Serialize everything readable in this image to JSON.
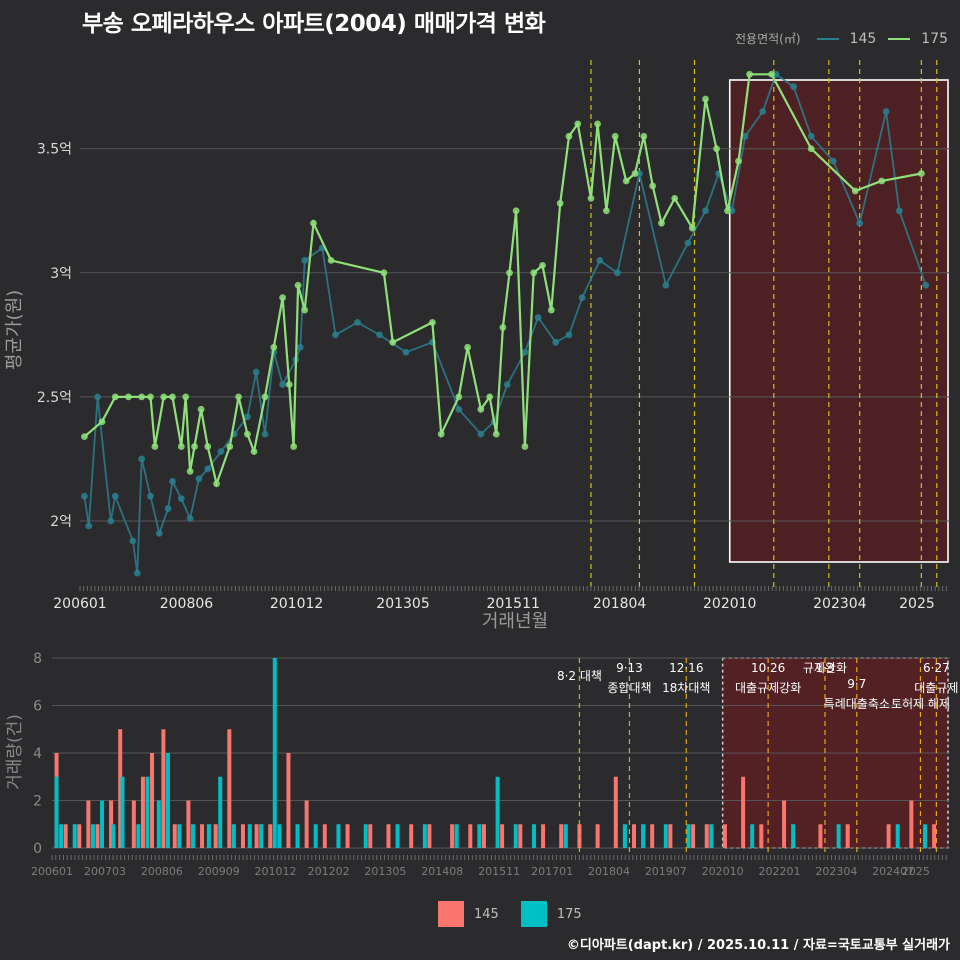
{
  "title": "부송 오페라하우스 아파트(2004) 매매가격 변화",
  "footer": "©디아파트(dapt.kr) / 2025.10.11 / 자료=국토교통부 실거래가",
  "legend": {
    "caption": "전용면적(㎡)",
    "items": [
      {
        "label": "145",
        "color": "#2a7f8f"
      },
      {
        "label": "175",
        "color": "#8fe07a"
      }
    ]
  },
  "bar_legend": [
    {
      "label": "145",
      "color": "#f8766d"
    },
    {
      "label": "175",
      "color": "#00bfc4"
    }
  ],
  "chart_data": [
    {
      "type": "line",
      "title": "부송 오페라하우스 아파트(2004) 매매가격 변화",
      "xlabel": "거래년월",
      "ylabel": "평균가(원)",
      "xlim": [
        2006.0,
        2025.75
      ],
      "ylim": [
        1.73,
        3.93
      ],
      "x_tick_labels": [
        "200601",
        "200806",
        "201012",
        "201305",
        "201511",
        "201804",
        "202010",
        "202304",
        "2025"
      ],
      "y_tick_labels": [
        "2억",
        "2.5억",
        "3억",
        "3.5억"
      ],
      "y_ticks": [
        2.0,
        2.5,
        3.0,
        3.5
      ],
      "highlight_range": [
        2020.75,
        2025.75
      ],
      "policy_lines": [
        2017.6,
        2018.7,
        2019.95,
        2021.75,
        2023.0,
        2023.7,
        2025.1,
        2025.45
      ],
      "series": [
        {
          "name": "145",
          "color": "#2a7f8f",
          "x": [
            2006.1,
            2006.2,
            2006.4,
            2006.7,
            2006.8,
            2007.2,
            2007.3,
            2007.4,
            2007.6,
            2007.8,
            2008.0,
            2008.1,
            2008.3,
            2008.5,
            2008.7,
            2008.9,
            2009.2,
            2009.5,
            2009.8,
            2010.0,
            2010.2,
            2010.4,
            2010.6,
            2010.9,
            2011.0,
            2011.1,
            2011.5,
            2011.8,
            2012.3,
            2012.8,
            2013.4,
            2014.0,
            2014.6,
            2015.1,
            2015.4,
            2015.7,
            2016.1,
            2016.4,
            2016.8,
            2017.1,
            2017.4,
            2017.8,
            2018.2,
            2018.7,
            2019.3,
            2019.8,
            2020.2,
            2020.5,
            2020.8,
            2021.1,
            2021.5,
            2021.8,
            2022.2,
            2022.6,
            2023.1,
            2023.7,
            2024.3,
            2024.6,
            2025.2
          ],
          "values": [
            2.1,
            1.98,
            2.5,
            2.0,
            2.1,
            1.92,
            1.79,
            2.25,
            2.1,
            1.95,
            2.05,
            2.16,
            2.09,
            2.01,
            2.17,
            2.21,
            2.28,
            2.35,
            2.42,
            2.6,
            2.35,
            2.68,
            2.55,
            2.65,
            2.7,
            3.05,
            3.1,
            2.75,
            2.8,
            2.75,
            2.68,
            2.72,
            2.45,
            2.35,
            2.4,
            2.55,
            2.68,
            2.82,
            2.72,
            2.75,
            2.9,
            3.05,
            3.0,
            3.4,
            2.95,
            3.12,
            3.25,
            3.4,
            3.25,
            3.55,
            3.65,
            3.8,
            3.75,
            3.55,
            3.45,
            3.2,
            3.65,
            3.25,
            2.95
          ]
        },
        {
          "name": "175",
          "color": "#8fe07a",
          "x": [
            2006.1,
            2006.5,
            2006.8,
            2007.1,
            2007.4,
            2007.6,
            2007.7,
            2007.9,
            2008.1,
            2008.3,
            2008.4,
            2008.5,
            2008.6,
            2008.75,
            2008.9,
            2009.1,
            2009.4,
            2009.6,
            2009.8,
            2009.95,
            2010.2,
            2010.4,
            2010.6,
            2010.75,
            2010.85,
            2010.95,
            2011.1,
            2011.3,
            2011.7,
            2012.9,
            2013.1,
            2014.0,
            2014.2,
            2014.6,
            2014.8,
            2015.1,
            2015.3,
            2015.45,
            2015.6,
            2015.75,
            2015.9,
            2016.1,
            2016.3,
            2016.5,
            2016.7,
            2016.9,
            2017.1,
            2017.3,
            2017.6,
            2017.75,
            2017.95,
            2018.15,
            2018.4,
            2018.6,
            2018.8,
            2019.0,
            2019.2,
            2019.5,
            2019.9,
            2020.2,
            2020.45,
            2020.7,
            2020.95,
            2021.2,
            2021.7,
            2022.6,
            2023.6,
            2024.2,
            2025.1
          ],
          "values": [
            2.34,
            2.4,
            2.5,
            2.5,
            2.5,
            2.5,
            2.3,
            2.5,
            2.5,
            2.3,
            2.5,
            2.2,
            2.3,
            2.45,
            2.3,
            2.15,
            2.3,
            2.5,
            2.35,
            2.28,
            2.5,
            2.7,
            2.9,
            2.55,
            2.3,
            2.95,
            2.85,
            3.2,
            3.05,
            3.0,
            2.72,
            2.8,
            2.35,
            2.5,
            2.7,
            2.45,
            2.5,
            2.35,
            2.78,
            3.0,
            3.25,
            2.3,
            3.0,
            3.03,
            2.85,
            3.28,
            3.55,
            3.6,
            3.3,
            3.6,
            3.25,
            3.55,
            3.37,
            3.4,
            3.55,
            3.35,
            3.2,
            3.3,
            3.18,
            3.7,
            3.5,
            3.25,
            3.45,
            3.8,
            3.8,
            3.5,
            3.33,
            3.37,
            3.4
          ]
        }
      ]
    },
    {
      "type": "bar",
      "title": "",
      "xlabel": "",
      "ylabel": "거래량(건)",
      "xlim": [
        2006.0,
        2025.75
      ],
      "ylim": [
        0,
        8
      ],
      "x_tick_labels": [
        "200601",
        "200703",
        "200806",
        "200909",
        "201012",
        "201202",
        "201305",
        "201408",
        "201511",
        "201701",
        "201804",
        "201907",
        "202010",
        "202201",
        "202304",
        "202407",
        "2025"
      ],
      "y_tick_labels": [
        "0",
        "2",
        "4",
        "6",
        "8"
      ],
      "y_ticks": [
        0,
        2,
        4,
        6,
        8
      ],
      "highlight_range": [
        2020.75,
        2025.75
      ],
      "annotations": [
        {
          "x": 2017.6,
          "date": "",
          "label": "8·2 대책"
        },
        {
          "x": 2018.7,
          "date": "9·13",
          "label": "종합대책"
        },
        {
          "x": 2019.95,
          "date": "12·16",
          "label": "18차대책"
        },
        {
          "x": 2021.75,
          "date": "10·26",
          "label": "대출규제강화"
        },
        {
          "x": 2023.0,
          "date": "1·3",
          "label": "규제완화"
        },
        {
          "x": 2023.7,
          "date": "9·7",
          "label": "특례대출축소"
        },
        {
          "x": 2025.1,
          "date": "",
          "label": "토허제 해제"
        },
        {
          "x": 2025.45,
          "date": "6·27",
          "label": "대출규제"
        }
      ],
      "series": [
        {
          "name": "145",
          "color": "#f8766d",
          "x": [
            2006.1,
            2006.3,
            2006.6,
            2006.8,
            2007.0,
            2007.3,
            2007.5,
            2007.8,
            2008.0,
            2008.2,
            2008.45,
            2008.7,
            2009.0,
            2009.3,
            2009.6,
            2009.9,
            2010.2,
            2010.5,
            2010.8,
            2011.2,
            2011.6,
            2012.0,
            2012.5,
            2013.0,
            2013.4,
            2013.9,
            2014.3,
            2014.8,
            2015.2,
            2015.5,
            2015.9,
            2016.3,
            2016.8,
            2017.2,
            2017.6,
            2018.0,
            2018.4,
            2018.8,
            2019.2,
            2019.6,
            2020.1,
            2020.4,
            2020.8,
            2021.2,
            2021.6,
            2022.1,
            2022.9,
            2023.5,
            2024.4,
            2024.9,
            2025.4
          ],
          "values": [
            4,
            1,
            1,
            2,
            1,
            2,
            5,
            2,
            3,
            4,
            5,
            1,
            2,
            1,
            1,
            5,
            1,
            1,
            1,
            4,
            2,
            1,
            1,
            1,
            1,
            1,
            1,
            1,
            1,
            1,
            1,
            1,
            1,
            1,
            1,
            1,
            3,
            1,
            1,
            1,
            1,
            1,
            1,
            3,
            1,
            2,
            1,
            1,
            1,
            2,
            1
          ]
        },
        {
          "name": "175",
          "color": "#00bfc4",
          "x": [
            2006.1,
            2006.2,
            2006.5,
            2006.9,
            2007.1,
            2007.35,
            2007.55,
            2007.9,
            2008.1,
            2008.35,
            2008.55,
            2008.8,
            2009.1,
            2009.45,
            2009.7,
            2010.0,
            2010.35,
            2010.6,
            2010.9,
            2011.0,
            2011.4,
            2011.8,
            2012.3,
            2012.9,
            2013.6,
            2014.2,
            2014.9,
            2015.4,
            2015.8,
            2016.2,
            2016.6,
            2017.3,
            2018.6,
            2019.0,
            2019.5,
            2020.0,
            2020.5,
            2021.4,
            2022.3,
            2023.3,
            2024.6,
            2025.2
          ],
          "values": [
            3,
            1,
            1,
            1,
            2,
            1,
            3,
            1,
            3,
            2,
            4,
            1,
            1,
            1,
            3,
            1,
            1,
            1,
            8,
            1,
            1,
            1,
            1,
            1,
            1,
            1,
            1,
            1,
            3,
            1,
            1,
            1,
            1,
            1,
            1,
            1,
            1,
            1,
            1,
            1,
            1,
            1
          ]
        }
      ]
    }
  ]
}
